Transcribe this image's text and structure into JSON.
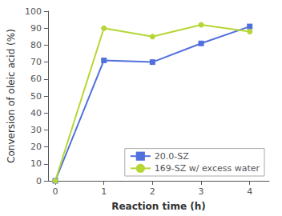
{
  "chart_data": {
    "type": "line",
    "xlabel": "Reaction time (h)",
    "ylabel": "Conversion of oleic acid (%)",
    "x": [
      0,
      1,
      2,
      3,
      4
    ],
    "series": [
      {
        "name": "20.0-SZ",
        "values": [
          0,
          71,
          70,
          81,
          91
        ],
        "marker": "square"
      },
      {
        "name": "169-SZ w/ excess water",
        "values": [
          0,
          90,
          85,
          92,
          88
        ],
        "marker": "circle"
      }
    ],
    "xlim": [
      -0.15,
      4.4
    ],
    "xticks": [
      0,
      1,
      2,
      3,
      4
    ],
    "ylim": [
      0,
      100
    ],
    "yticks": [
      0,
      10,
      20,
      30,
      40,
      50,
      60,
      70,
      80,
      90,
      100
    ],
    "legend": "lower right",
    "grid": false
  }
}
